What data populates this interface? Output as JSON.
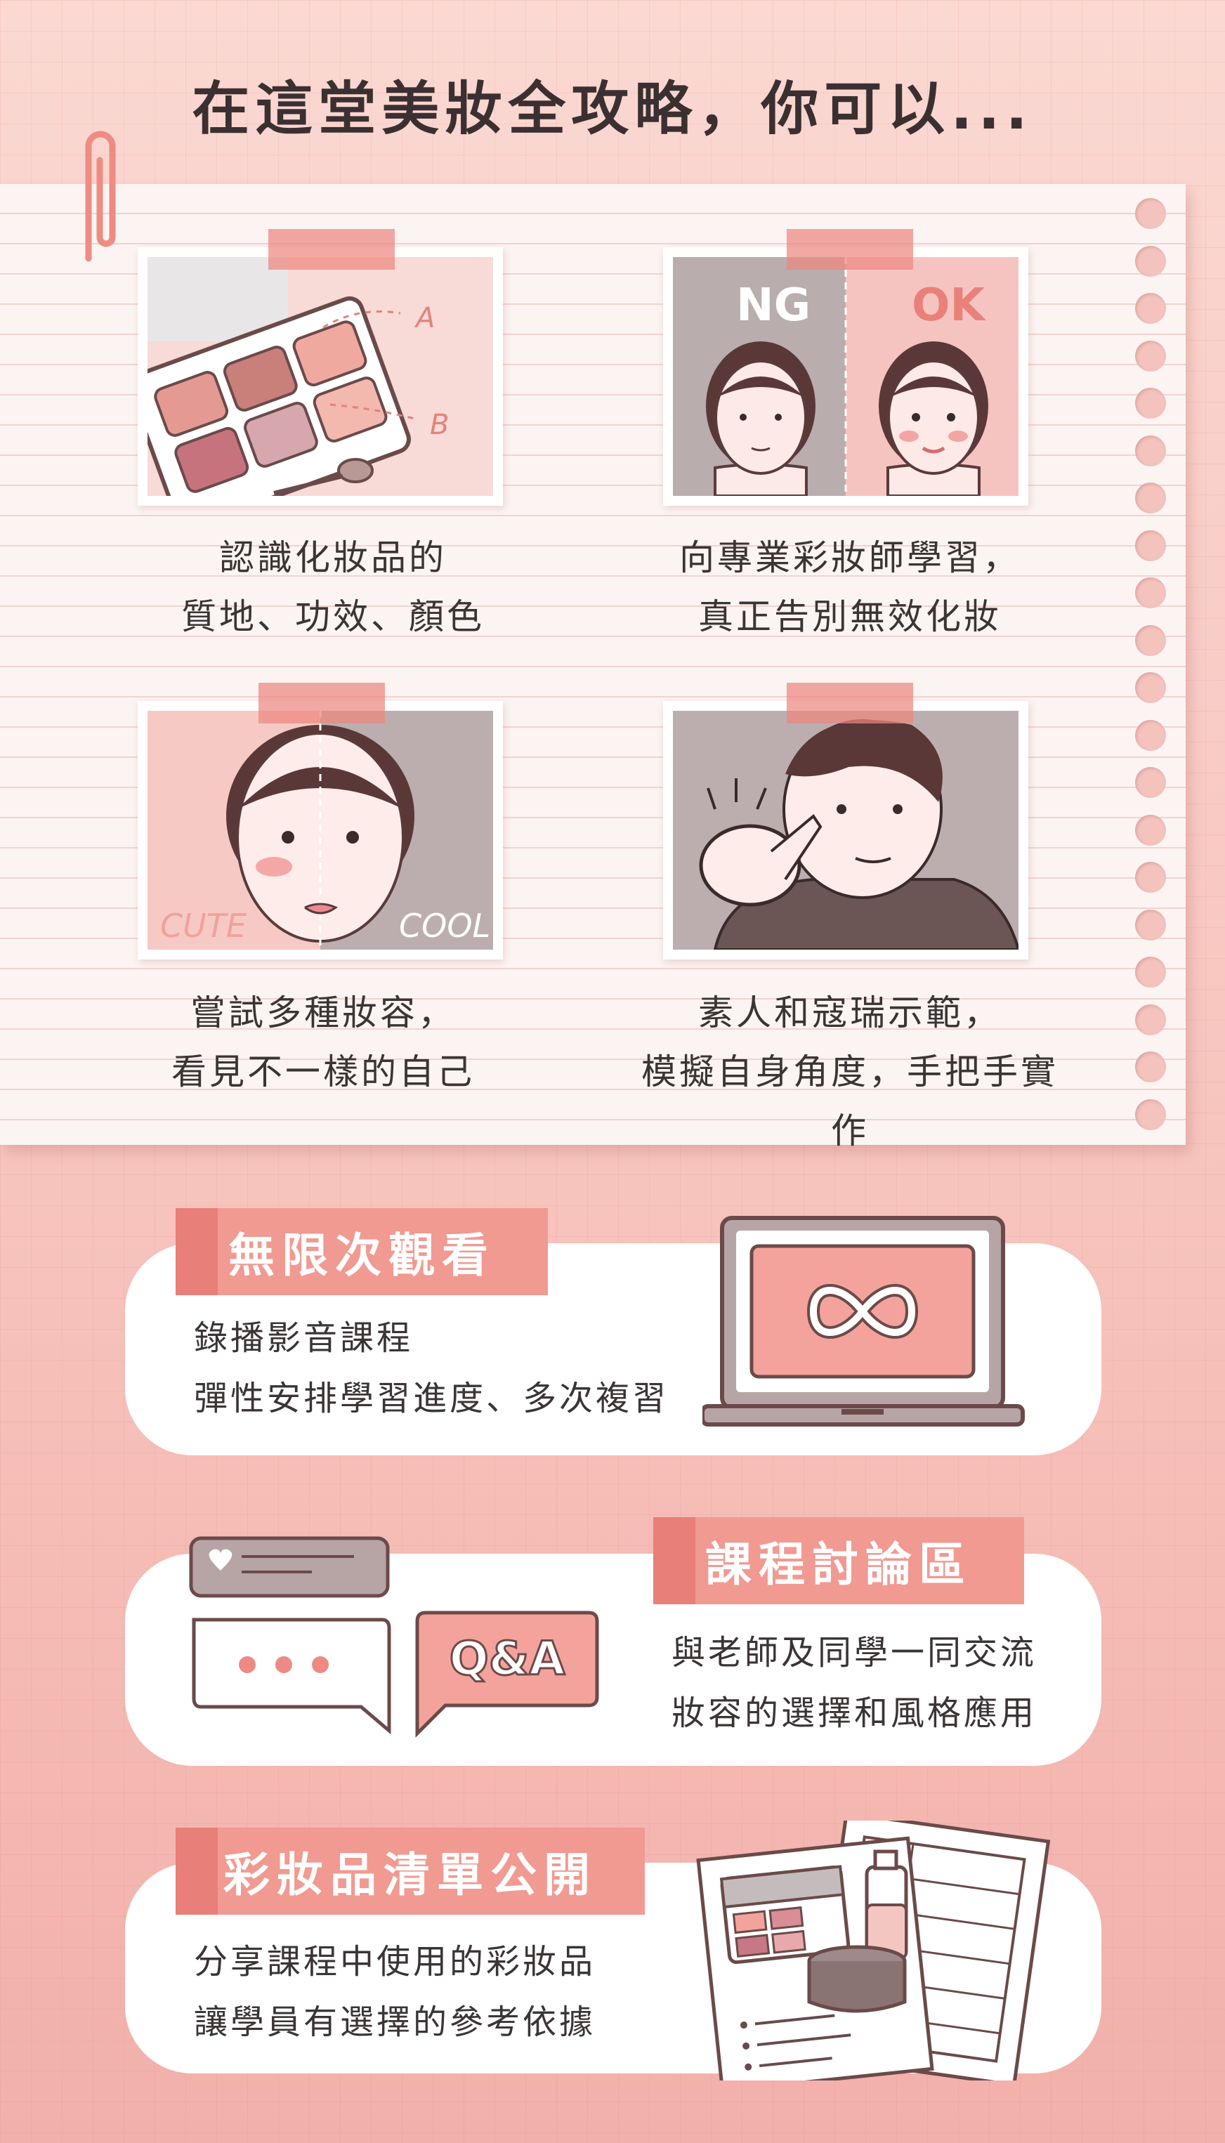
{
  "header": {
    "title": "在這堂美妝全攻略，你可以..."
  },
  "photos": [
    {
      "caption_line1": "認識化妝品的",
      "caption_line2": "質地、功效、顏色",
      "labels": [
        "A",
        "B"
      ]
    },
    {
      "caption_line1": "向專業彩妝師學習，",
      "caption_line2": "真正告別無效化妝",
      "labels": [
        "NG",
        "OK"
      ]
    },
    {
      "caption_line1": "嘗試多種妝容，",
      "caption_line2": "看見不一樣的自己",
      "labels": [
        "CUTE",
        "COOL"
      ]
    },
    {
      "caption_line1": "素人和寇瑞示範，",
      "caption_line2": "模擬自身角度，手把手實作",
      "labels": []
    }
  ],
  "features": [
    {
      "title": "無限次觀看",
      "line1": "錄播影音課程",
      "line2": "彈性安排學習進度、多次複習",
      "icon": "laptop-infinity-icon"
    },
    {
      "title": "課程討論區",
      "line1": "與老師及同學一同交流",
      "line2": "妝容的選擇和風格應用",
      "icon": "chat-bubbles-icon",
      "badge": "Q&A"
    },
    {
      "title": "彩妝品清單公開",
      "line1": "分享課程中使用的彩妝品",
      "line2": "讓學員有選擇的參考依據",
      "icon": "makeup-list-icon"
    }
  ],
  "colors": {
    "accent": "#f09a92",
    "accent_dark": "#e87f78",
    "outline": "#6b4a4a",
    "paper": "#fbf4f2"
  }
}
